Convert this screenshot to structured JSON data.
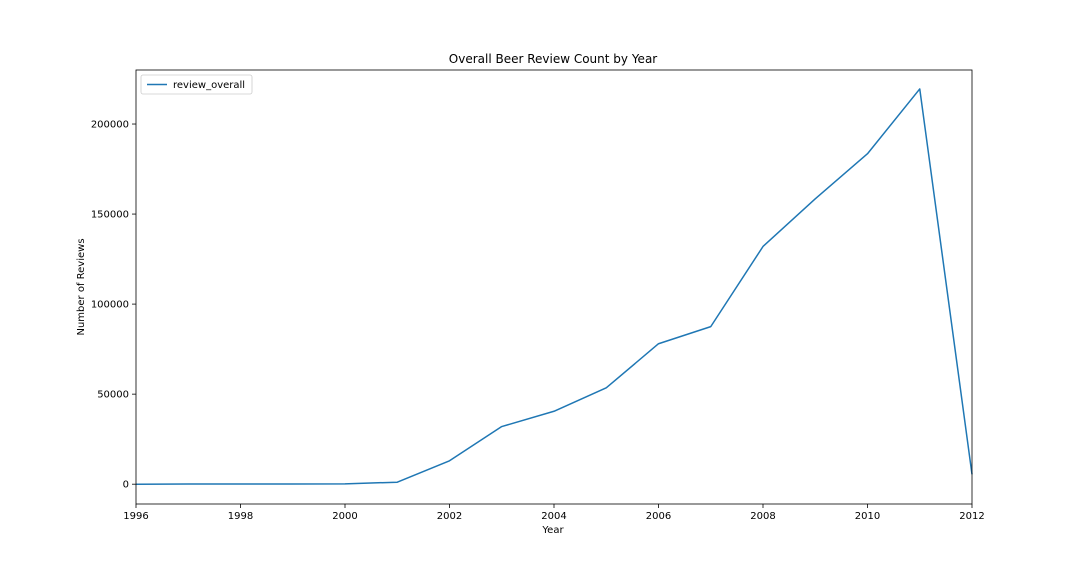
{
  "chart_data": {
    "type": "line",
    "title": "Overall Beer Review Count by Year",
    "xlabel": "Year",
    "ylabel": "Number of Reviews",
    "xlim": [
      1996,
      2012
    ],
    "ylim": [
      -11000,
      230000
    ],
    "x_ticks": [
      1996,
      1998,
      2000,
      2002,
      2004,
      2006,
      2008,
      2010,
      2012
    ],
    "y_ticks": [
      0,
      50000,
      100000,
      150000,
      200000
    ],
    "x_tick_labels": [
      "1996",
      "1998",
      "2000",
      "2002",
      "2004",
      "2006",
      "2008",
      "2010",
      "2012"
    ],
    "y_tick_labels": [
      "0",
      "50000",
      "100000",
      "150000",
      "200000"
    ],
    "grid": false,
    "legend_position": "top-left",
    "series": [
      {
        "name": "review_overall",
        "color": "#1f77b4",
        "x": [
          1996,
          1997,
          1998,
          1999,
          2000,
          2001,
          2002,
          2003,
          2004,
          2005,
          2006,
          2007,
          2008,
          2009,
          2010,
          2011,
          2012
        ],
        "values": [
          0,
          100,
          100,
          100,
          200,
          1100,
          13000,
          32000,
          40500,
          53500,
          78000,
          87500,
          132000,
          158500,
          183500,
          219500,
          5500
        ]
      }
    ]
  }
}
